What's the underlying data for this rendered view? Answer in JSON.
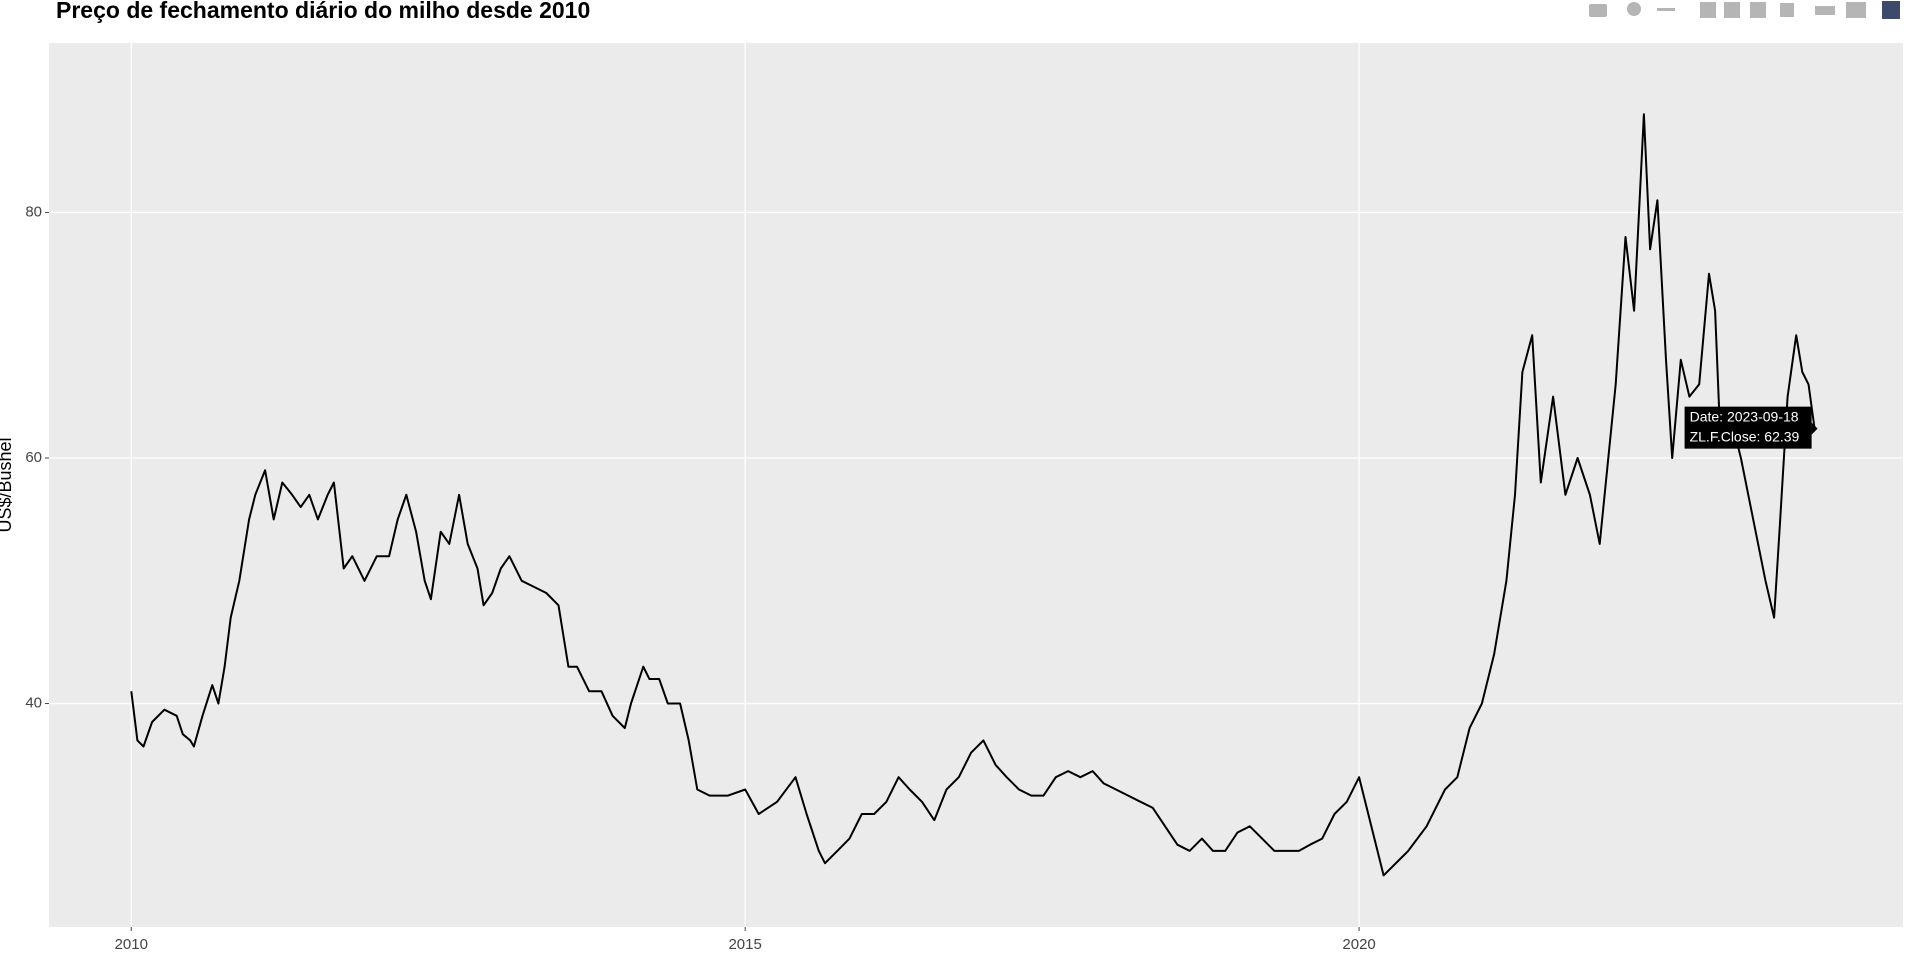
{
  "chart_data": {
    "type": "line",
    "title": "Preço de fechamento diário do milho desde 2010",
    "y_label": "US$/Bushel",
    "tooltip": [
      "Date: 2023-09-18",
      "ZL.F.Close: 62.39"
    ],
    "color": "#000000",
    "grid": true,
    "xlim": [
      2009.33,
      2024.43
    ],
    "xticks": [
      2010,
      2015,
      2020
    ],
    "ylim": [
      21.8,
      93.8
    ],
    "yticks": [
      40,
      60,
      80
    ],
    "x": [
      2010.0,
      2010.05,
      2010.1,
      2010.17,
      2010.27,
      2010.37,
      2010.42,
      2010.48,
      2010.51,
      2010.58,
      2010.66,
      2010.71,
      2010.76,
      2010.81,
      2010.88,
      2010.96,
      2011.01,
      2011.09,
      2011.16,
      2011.23,
      2011.31,
      2011.38,
      2011.45,
      2011.52,
      2011.6,
      2011.65,
      2011.73,
      2011.8,
      2011.9,
      2012.0,
      2012.1,
      2012.17,
      2012.24,
      2012.32,
      2012.39,
      2012.44,
      2012.52,
      2012.59,
      2012.67,
      2012.74,
      2012.82,
      2012.87,
      2012.94,
      2013.01,
      2013.08,
      2013.18,
      2013.28,
      2013.38,
      2013.48,
      2013.56,
      2013.63,
      2013.73,
      2013.83,
      2013.92,
      2014.02,
      2014.07,
      2014.17,
      2014.22,
      2014.3,
      2014.37,
      2014.47,
      2014.54,
      2014.61,
      2014.71,
      2014.86,
      2015.0,
      2015.11,
      2015.26,
      2015.41,
      2015.5,
      2015.6,
      2015.65,
      2015.75,
      2015.85,
      2015.95,
      2016.05,
      2016.15,
      2016.25,
      2016.34,
      2016.44,
      2016.54,
      2016.64,
      2016.74,
      2016.84,
      2016.94,
      2017.04,
      2017.13,
      2017.23,
      2017.33,
      2017.43,
      2017.53,
      2017.63,
      2017.73,
      2017.83,
      2017.92,
      2018.02,
      2018.12,
      2018.22,
      2018.32,
      2018.42,
      2018.52,
      2018.62,
      2018.72,
      2018.81,
      2018.91,
      2019.01,
      2019.11,
      2019.21,
      2019.31,
      2019.41,
      2019.51,
      2019.6,
      2019.7,
      2019.8,
      2019.9,
      2020.0,
      2020.2,
      2020.4,
      2020.55,
      2020.7,
      2020.8,
      2020.9,
      2021.0,
      2021.1,
      2021.2,
      2021.27,
      2021.33,
      2021.41,
      2021.48,
      2021.58,
      2021.68,
      2021.78,
      2021.88,
      2021.96,
      2022.03,
      2022.09,
      2022.17,
      2022.24,
      2022.32,
      2022.37,
      2022.43,
      2022.5,
      2022.55,
      2022.62,
      2022.69,
      2022.77,
      2022.85,
      2022.9,
      2022.94,
      2023.01,
      2023.11,
      2023.21,
      2023.31,
      2023.38,
      2023.43,
      2023.49,
      2023.56,
      2023.61,
      2023.66,
      2023.71
    ],
    "values": [
      41,
      37,
      36.5,
      38.5,
      39.5,
      39,
      37.5,
      37,
      36.5,
      39,
      41.5,
      40,
      43,
      47,
      50,
      55,
      57,
      59,
      55,
      58,
      57,
      56,
      57,
      55,
      57,
      58,
      51,
      52,
      50,
      52,
      52,
      55,
      57,
      54,
      50,
      48.5,
      54,
      53,
      57,
      53,
      51,
      48,
      49,
      51,
      52,
      50,
      49.5,
      49,
      48,
      43,
      43,
      41,
      41,
      39,
      38,
      40,
      43,
      42,
      42,
      40,
      40,
      37,
      33,
      32.5,
      32.5,
      33,
      31,
      32,
      34,
      31,
      28,
      27,
      28,
      29,
      31,
      31,
      32,
      34,
      33,
      32,
      30.5,
      33,
      34,
      36,
      37,
      35,
      34,
      33,
      32.5,
      32.5,
      34,
      34.5,
      34,
      34.5,
      33.5,
      33,
      32.5,
      32,
      31.5,
      30,
      28.5,
      28,
      29,
      28,
      28,
      29.5,
      30,
      29,
      28,
      28,
      28,
      28.5,
      29,
      31,
      32,
      34,
      26,
      28,
      30,
      33,
      34,
      38,
      40,
      44,
      50,
      57,
      67,
      70,
      58,
      65,
      57,
      60,
      57,
      53,
      60,
      66,
      78,
      72,
      88,
      77,
      81,
      68,
      60,
      68,
      65,
      66,
      75,
      72,
      62,
      64,
      60,
      55,
      50,
      47,
      55,
      65,
      70,
      67,
      66,
      62.39
    ]
  }
}
